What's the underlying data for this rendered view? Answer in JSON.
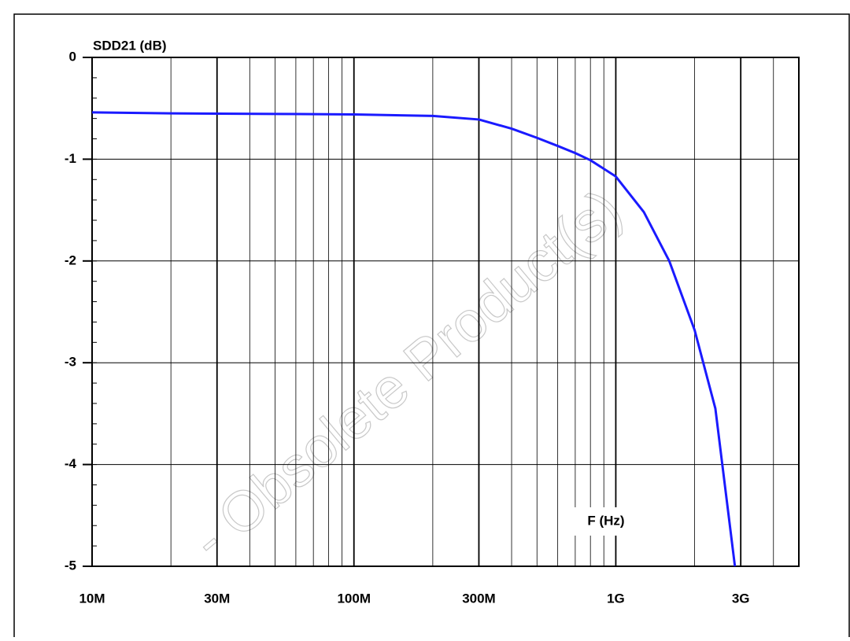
{
  "chart_data": {
    "type": "line",
    "xscale": "log",
    "grid": true,
    "ylabel": "SDD21 (dB)",
    "xlabel": "F (Hz)",
    "watermark": "- Obsolete Product(s)",
    "xlim": [
      10000000,
      5000000000
    ],
    "xticks": [
      {
        "value": 10000000,
        "label": "10M"
      },
      {
        "value": 30000000,
        "label": "30M"
      },
      {
        "value": 100000000,
        "label": "100M"
      },
      {
        "value": 300000000,
        "label": "300M"
      },
      {
        "value": 1000000000,
        "label": "1G"
      },
      {
        "value": 3000000000,
        "label": "3G"
      }
    ],
    "ylim": [
      -5,
      0
    ],
    "yticks": [
      0,
      -1,
      -2,
      -3,
      -4,
      -5
    ],
    "x": [
      10000000,
      20000000,
      50000000,
      100000000,
      200000000,
      300000000,
      400000000,
      500000000,
      600000000,
      700000000,
      800000000,
      1000000000,
      1280000000,
      1600000000,
      2000000000,
      2400000000,
      2850000000
    ],
    "series": [
      {
        "color": "#1a1aff",
        "values": [
          -0.54,
          -0.55,
          -0.555,
          -0.56,
          -0.575,
          -0.61,
          -0.7,
          -0.79,
          -0.87,
          -0.94,
          -1.01,
          -1.17,
          -1.52,
          -2.0,
          -2.68,
          -3.45,
          -5.0
        ]
      }
    ]
  }
}
